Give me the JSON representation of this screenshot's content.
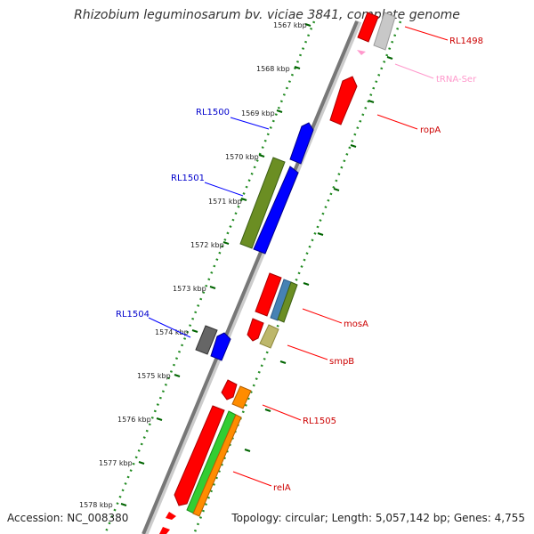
{
  "title": "Rhizobium leguminosarum bv. viciae 3841, complete genome",
  "accession": "Accession: NC_008380",
  "summary": "Topology: circular; Length: 5,057,142 bp; Genes: 4,755",
  "ticks": [
    "1567 kbp",
    "1568 kbp",
    "1569 kbp",
    "1570 kbp",
    "1571 kbp",
    "1572 kbp",
    "1573 kbp",
    "1574 kbp",
    "1575 kbp",
    "1576 kbp",
    "1577 kbp",
    "1578 kbp"
  ],
  "labels": {
    "rl1498": "RL1498",
    "trna": "tRNA-Ser",
    "ropa": "ropA",
    "rl1500": "RL1500",
    "rl1501": "RL1501",
    "mosa": "mosA",
    "rl1504": "RL1504",
    "smpb": "smpB",
    "rl1505": "RL1505",
    "rela": "relA"
  },
  "colors": {
    "red": "#ff0000",
    "blue": "#0000ff",
    "olive": "#6b8e23",
    "gray": "#666666",
    "lightgray": "#bbbbbb",
    "green": "#32cd32",
    "orange": "#ff8c00",
    "steelblue": "#4682b4",
    "khaki": "#bdb76b",
    "pink": "#ff99cc",
    "tick_green": "#228b22"
  }
}
